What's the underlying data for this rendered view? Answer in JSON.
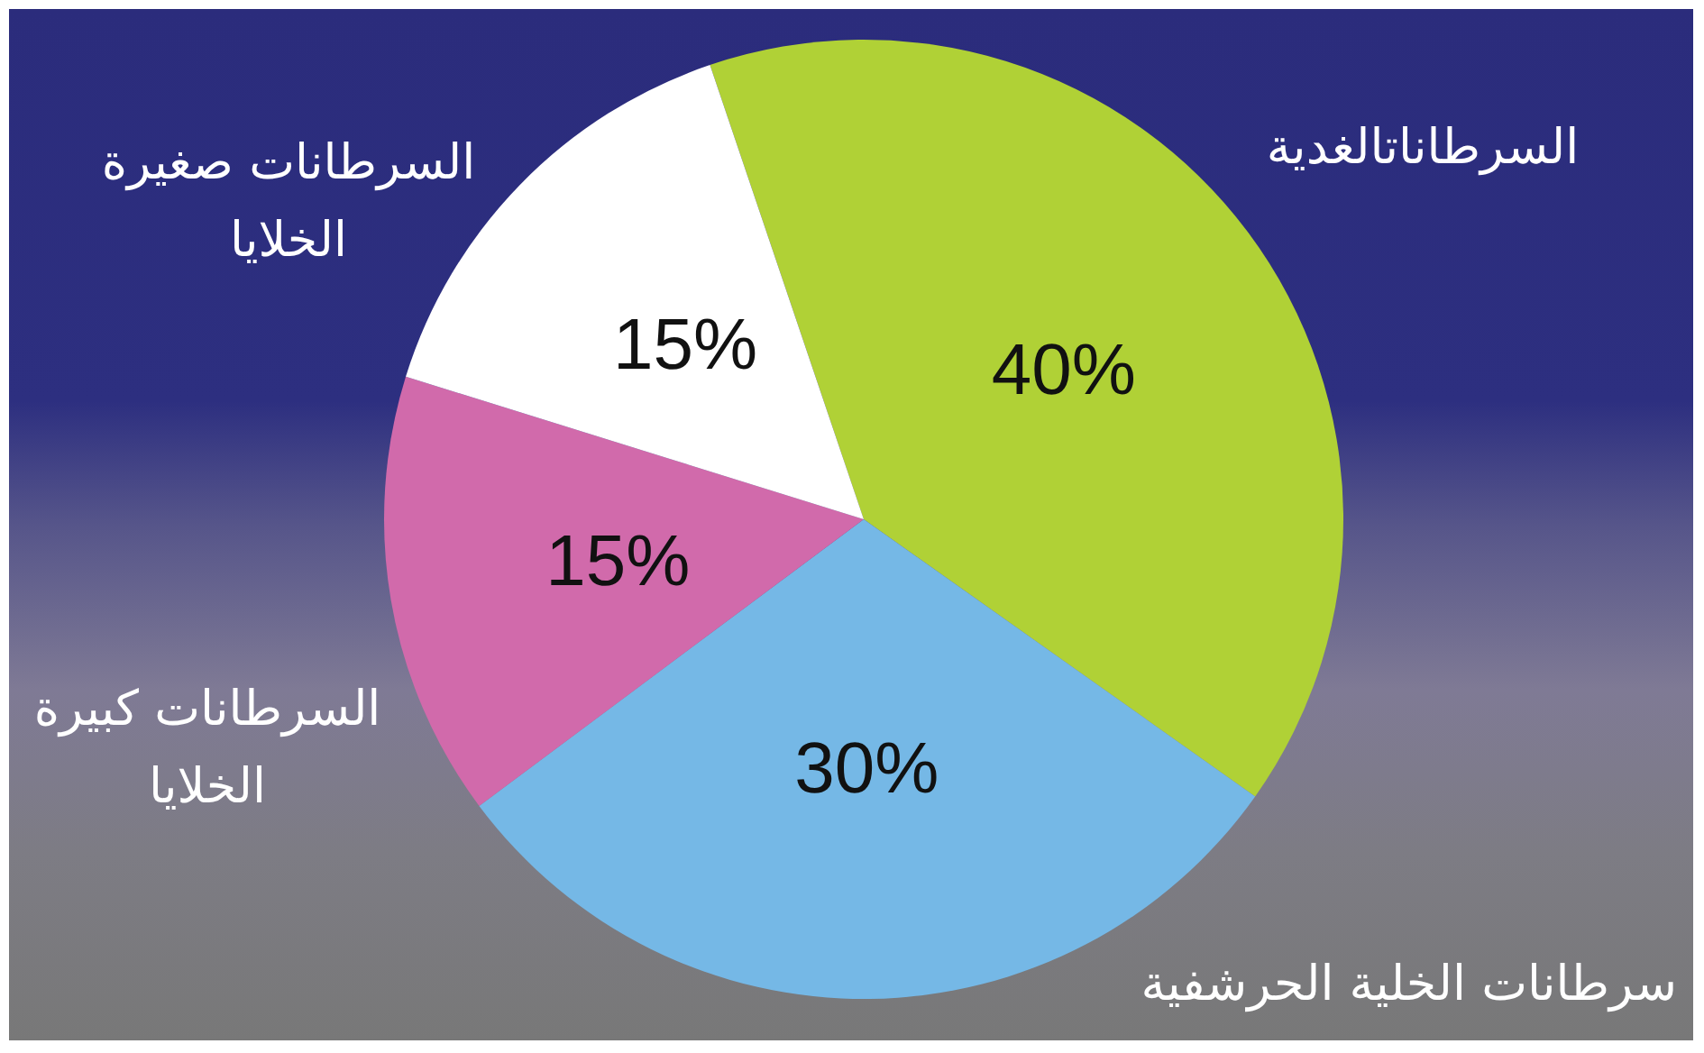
{
  "chart_data": {
    "type": "pie",
    "categories": [
      "السرطاناتالغدية",
      "سرطانات الخلية الحرشفية",
      "السرطانات كبيرة الخلايا",
      "السرطانات صغيرة الخلايا"
    ],
    "values": [
      40,
      30,
      15,
      15
    ],
    "colors": [
      "#b0d136",
      "#75b8e6",
      "#d16aab",
      "#ffffff"
    ],
    "value_labels": [
      "40%",
      "30%",
      "15%",
      "15%"
    ]
  }
}
